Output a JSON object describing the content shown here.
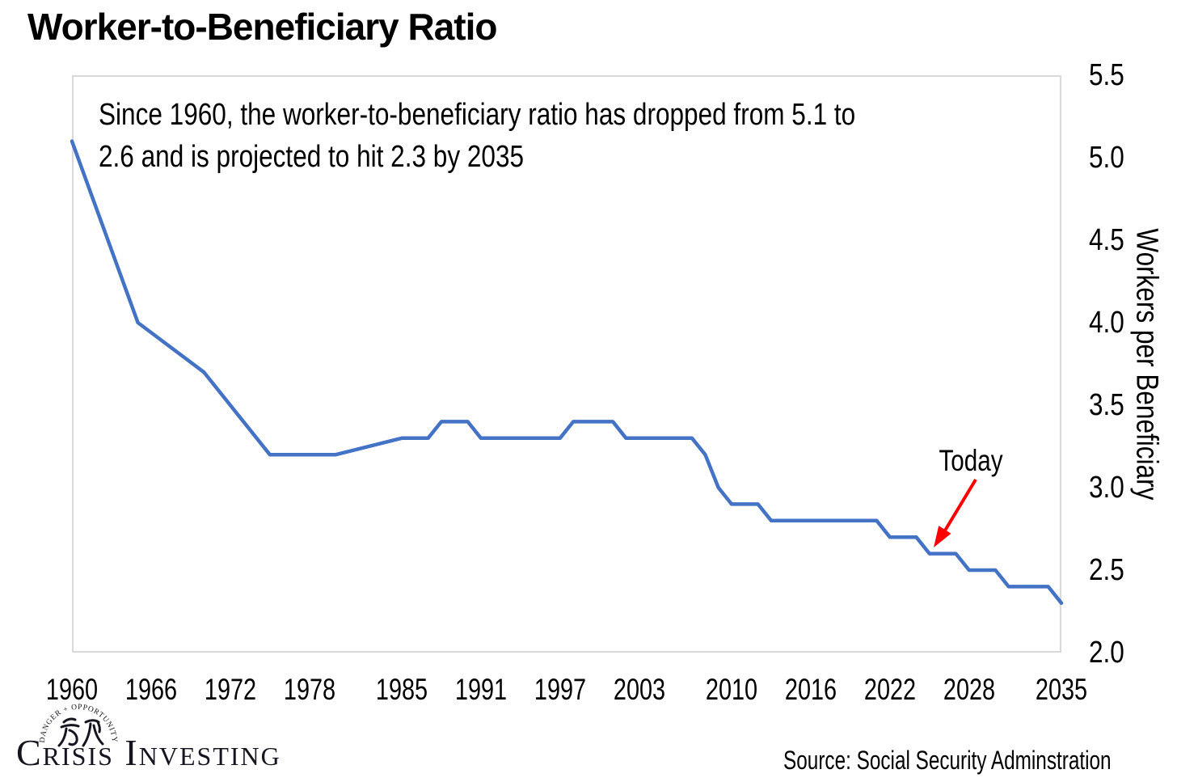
{
  "page_title": "Worker-to-Beneficiary Ratio",
  "annotation_lines": [
    "Since 1960, the worker-to-beneficiary ratio has dropped from 5.1 to",
    "2.6 and is projected to hit 2.3 by 2035"
  ],
  "today_label": "Today",
  "source_text": "Source: Social Security Adminstration",
  "logo": {
    "wordmark": "Crisis Investing",
    "seal_arc_text": "DANGER + OPPORTUNITY",
    "seal_characters": "危机"
  },
  "colors": {
    "line": "#4472C4",
    "arrow": "#FF0000",
    "plot_border": "#D9D9D9",
    "text": "#000000"
  },
  "chart_data": {
    "type": "line",
    "title": "Worker-to-Beneficiary Ratio",
    "xlabel": "",
    "ylabel": "Workers per Beneficiary",
    "x_range": [
      1960,
      2035
    ],
    "ylim": [
      2.0,
      5.5
    ],
    "x_ticks": [
      1960,
      1966,
      1972,
      1978,
      1985,
      1991,
      1997,
      2003,
      2010,
      2016,
      2022,
      2028,
      2035
    ],
    "y_ticks": [
      2.0,
      2.5,
      3.0,
      3.5,
      4.0,
      4.5,
      5.0,
      5.5
    ],
    "grid": false,
    "legend": "none",
    "series": [
      {
        "name": "Worker-to-Beneficiary Ratio",
        "points": [
          [
            1960,
            5.1
          ],
          [
            1965,
            4.0
          ],
          [
            1970,
            3.7
          ],
          [
            1975,
            3.2
          ],
          [
            1980,
            3.2
          ],
          [
            1985,
            3.3
          ],
          [
            1987,
            3.3
          ],
          [
            1988,
            3.4
          ],
          [
            1990,
            3.4
          ],
          [
            1991,
            3.3
          ],
          [
            1997,
            3.3
          ],
          [
            1998,
            3.4
          ],
          [
            2001,
            3.4
          ],
          [
            2002,
            3.3
          ],
          [
            2007,
            3.3
          ],
          [
            2008,
            3.2
          ],
          [
            2009,
            3.0
          ],
          [
            2010,
            2.9
          ],
          [
            2012,
            2.9
          ],
          [
            2013,
            2.8
          ],
          [
            2021,
            2.8
          ],
          [
            2022,
            2.7
          ],
          [
            2024,
            2.7
          ],
          [
            2025,
            2.6
          ],
          [
            2027,
            2.6
          ],
          [
            2028,
            2.5
          ],
          [
            2030,
            2.5
          ],
          [
            2031,
            2.4
          ],
          [
            2034,
            2.4
          ],
          [
            2035,
            2.3
          ]
        ]
      }
    ],
    "annotations": [
      {
        "label": "Today",
        "x": 2025,
        "y": 2.65
      }
    ]
  }
}
